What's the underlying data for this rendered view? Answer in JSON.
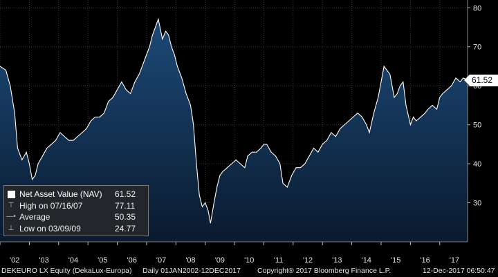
{
  "chart_data": {
    "type": "area",
    "ylim": [
      20,
      82
    ],
    "y_ticks": [
      30,
      40,
      50,
      60,
      70,
      80
    ],
    "x_tick_labels": [
      "'02",
      "'03",
      "'04",
      "'05",
      "'06",
      "'07",
      "'08",
      "'09",
      "'10",
      "'11",
      "'12",
      "'13",
      "'14",
      "'15",
      "'16",
      "'17"
    ],
    "x_range": [
      2002.0,
      2017.95
    ],
    "last_value_label": "61.52",
    "colors": {
      "area_top": "#1c4a78",
      "area_bottom": "#0a1a2e",
      "line": "#ffffff",
      "grid": "#3a3a3a",
      "background": "#000000"
    },
    "grid": true,
    "series": [
      {
        "name": "Net Asset Value (NAV)",
        "x": [
          2002.0,
          2002.2,
          2002.35,
          2002.5,
          2002.6,
          2002.75,
          2002.9,
          2003.0,
          2003.1,
          2003.2,
          2003.3,
          2003.45,
          2003.6,
          2003.75,
          2003.9,
          2004.05,
          2004.2,
          2004.35,
          2004.5,
          2004.65,
          2004.8,
          2004.95,
          2005.1,
          2005.25,
          2005.4,
          2005.55,
          2005.7,
          2005.85,
          2006.0,
          2006.15,
          2006.3,
          2006.45,
          2006.6,
          2006.75,
          2006.9,
          2007.0,
          2007.1,
          2007.2,
          2007.3,
          2007.4,
          2007.54,
          2007.65,
          2007.75,
          2007.85,
          2007.95,
          2008.05,
          2008.2,
          2008.35,
          2008.5,
          2008.6,
          2008.7,
          2008.8,
          2008.9,
          2009.0,
          2009.1,
          2009.18,
          2009.3,
          2009.4,
          2009.5,
          2009.6,
          2009.75,
          2009.9,
          2010.05,
          2010.2,
          2010.35,
          2010.45,
          2010.6,
          2010.75,
          2010.9,
          2011.0,
          2011.1,
          2011.25,
          2011.4,
          2011.55,
          2011.65,
          2011.8,
          2011.95,
          2012.1,
          2012.25,
          2012.4,
          2012.55,
          2012.7,
          2012.85,
          2013.0,
          2013.15,
          2013.3,
          2013.45,
          2013.6,
          2013.75,
          2013.9,
          2014.05,
          2014.2,
          2014.35,
          2014.5,
          2014.6,
          2014.75,
          2014.9,
          2015.0,
          2015.1,
          2015.2,
          2015.3,
          2015.45,
          2015.55,
          2015.65,
          2015.75,
          2015.85,
          2016.0,
          2016.1,
          2016.2,
          2016.35,
          2016.5,
          2016.6,
          2016.75,
          2016.9,
          2017.0,
          2017.1,
          2017.25,
          2017.4,
          2017.55,
          2017.7,
          2017.8,
          2017.95
        ],
        "values": [
          65,
          64,
          60,
          53,
          44,
          41,
          43,
          40,
          36,
          37,
          40,
          42,
          44,
          45,
          46,
          48,
          47,
          46,
          46,
          47,
          48,
          49,
          51,
          52,
          52,
          53,
          56,
          57,
          59,
          61,
          59,
          58,
          61,
          63,
          66,
          68,
          70,
          73,
          75,
          77.11,
          72,
          74,
          73,
          70,
          68,
          65,
          62,
          58,
          55,
          50,
          40,
          32,
          29,
          30,
          28,
          24.77,
          30,
          34,
          37,
          38,
          39,
          40,
          41,
          40,
          39,
          42,
          43,
          43,
          44,
          45,
          45,
          43,
          42,
          40,
          35,
          34,
          37,
          39,
          39,
          40,
          42,
          44,
          43,
          45,
          46,
          48,
          47,
          49,
          50,
          51,
          52,
          53,
          52,
          50,
          48,
          53,
          57,
          61,
          65,
          64,
          63,
          57,
          58,
          60,
          61,
          55,
          50,
          52,
          51,
          52,
          53,
          54,
          55,
          54,
          57,
          58,
          59,
          60,
          62,
          61,
          62,
          61.52
        ]
      }
    ],
    "legend": [
      {
        "marker": "square",
        "label": "Net Asset Value (NAV)",
        "value": "61.52"
      },
      {
        "marker": "high",
        "label": "High on 07/16/07",
        "value": "77.11"
      },
      {
        "marker": "average",
        "label": "Average",
        "value": "50.35"
      },
      {
        "marker": "low",
        "label": "Low on 03/09/09",
        "value": "24.77"
      }
    ]
  },
  "footer": {
    "security": "DEKEURO LX Equity (DekaLux-Europa)",
    "period": "Daily 01JAN2002-12DEC2017",
    "copyright": "Copyright® 2017 Bloomberg Finance L.P.",
    "timestamp": "12-Dec-2017 06:50:47"
  }
}
